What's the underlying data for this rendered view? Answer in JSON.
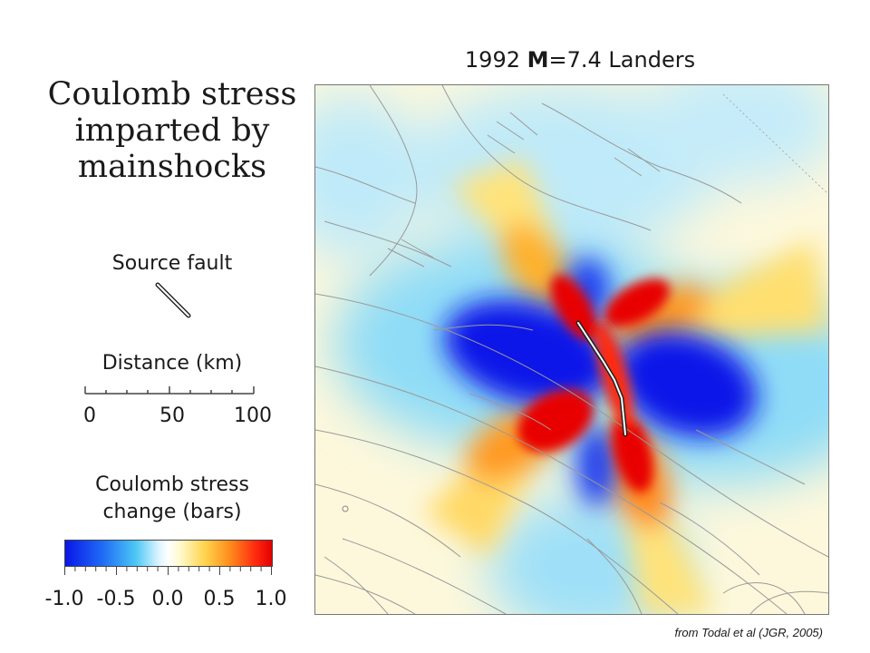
{
  "heading": {
    "line1": "Coulomb stress",
    "line2": "imparted by",
    "line3": "mainshocks"
  },
  "source_fault_label": "Source fault",
  "distance": {
    "label": "Distance (km)",
    "ticks": [
      "0",
      "50",
      "100"
    ]
  },
  "stress_legend": {
    "label_line1": "Coulomb stress",
    "label_line2": "change (bars)",
    "ticks": [
      "-1.0",
      "-0.5",
      "0.0",
      "0.5",
      "1.0"
    ]
  },
  "map": {
    "title_prefix": "1992 ",
    "title_bold": "M",
    "title_suffix": "=7.4 Landers"
  },
  "caption": "from Todal et al (JGR, 2005)",
  "colors": {
    "negative": "#0a17e8",
    "neutral": "#ffffff",
    "positive": "#e50000",
    "fault_line": "#9a9a9a"
  }
}
